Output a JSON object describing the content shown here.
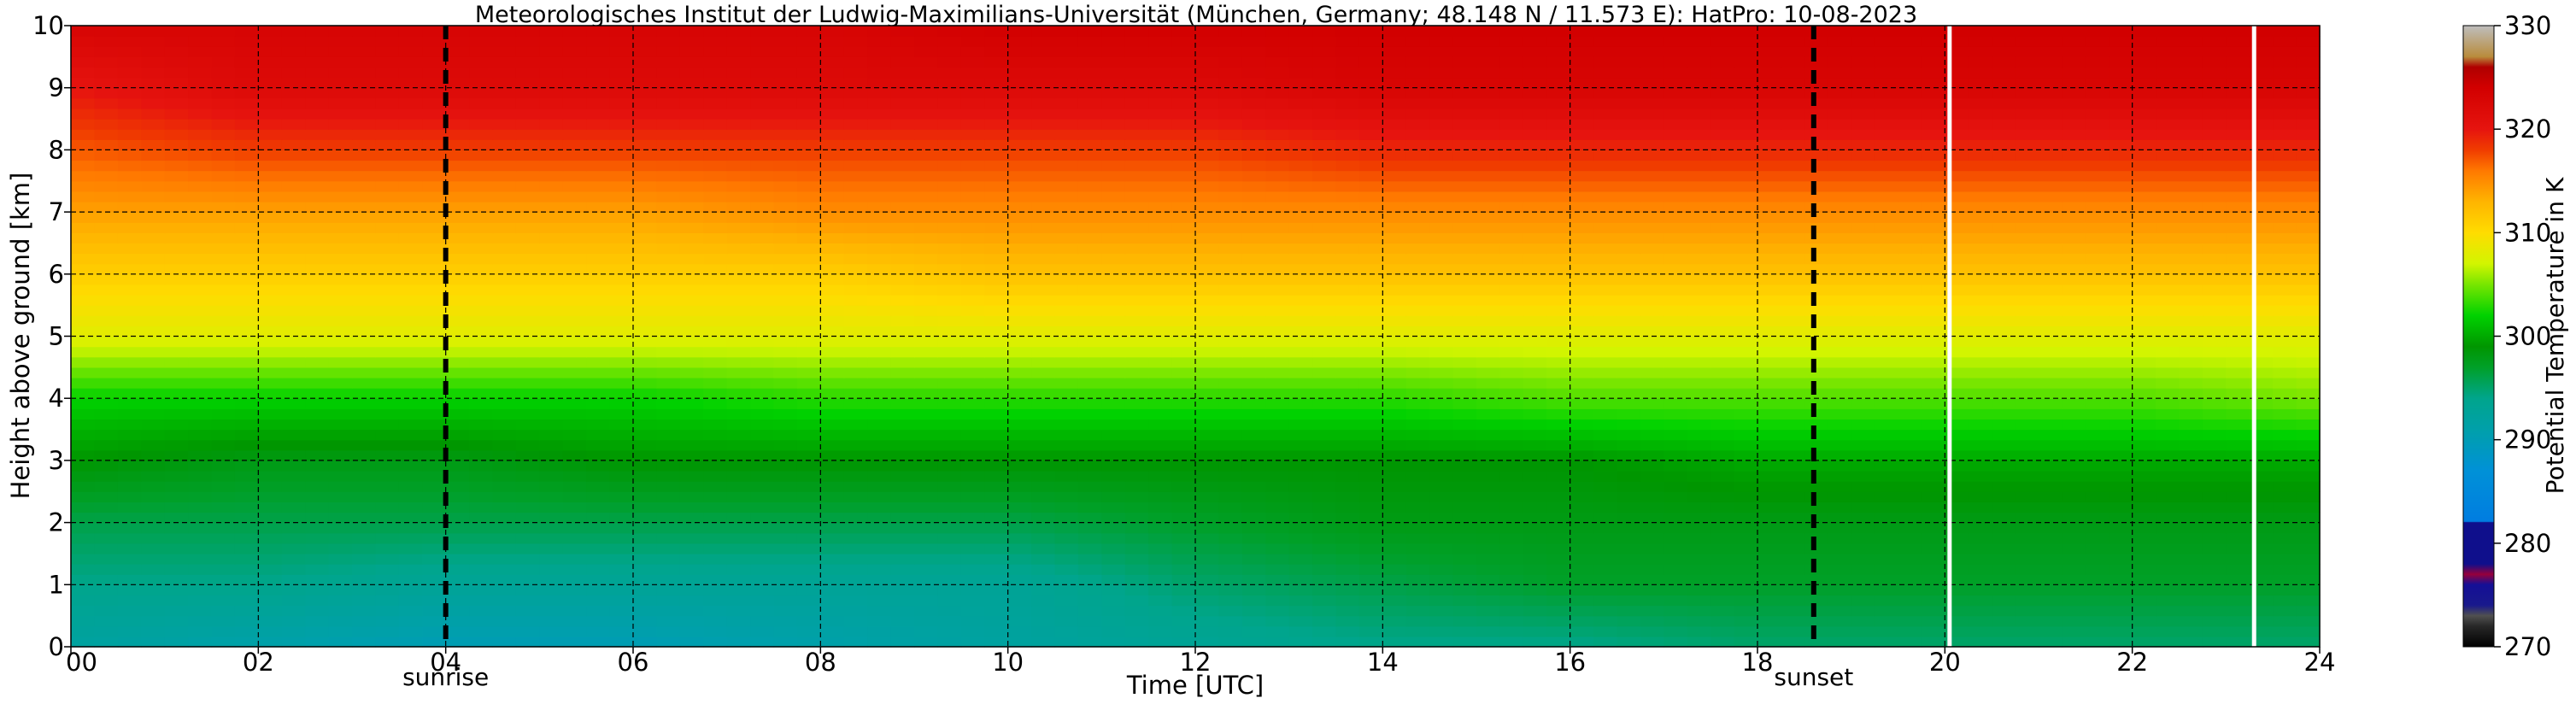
{
  "chart_data": {
    "type": "heatmap",
    "title": "Meteorologisches Institut der Ludwig-Maximilians-Universität (München, Germany; 48.148 N / 11.573 E):    HatPro: 10-08-2023",
    "xlabel": "Time [UTC]",
    "ylabel": "Height above ground [km]",
    "xlim": [
      0,
      24
    ],
    "ylim": [
      0,
      10
    ],
    "x_ticks": [
      0,
      2,
      4,
      6,
      8,
      10,
      12,
      14,
      16,
      18,
      20,
      22,
      24
    ],
    "x_tick_labels": [
      "00",
      "02",
      "04",
      "06",
      "08",
      "10",
      "12",
      "14",
      "16",
      "18",
      "20",
      "22",
      "24"
    ],
    "y_ticks": [
      0,
      1,
      2,
      3,
      4,
      5,
      6,
      7,
      8,
      9,
      10
    ],
    "y_tick_labels": [
      "0",
      "1",
      "2",
      "3",
      "4",
      "5",
      "6",
      "7",
      "8",
      "9",
      "10"
    ],
    "grid": true,
    "colorbar": {
      "label": "Potential Temperature in K",
      "range": [
        270,
        330
      ],
      "ticks": [
        270,
        280,
        290,
        300,
        310,
        320,
        330
      ],
      "tick_labels": [
        "270",
        "280",
        "290",
        "300",
        "310",
        "320",
        "330"
      ]
    },
    "annotations": [
      {
        "label": "sunrise",
        "x": 4.0,
        "style": "dashed-black"
      },
      {
        "label": "sunset",
        "x": 18.6,
        "style": "dashed-black"
      }
    ],
    "data_gaps": [
      20.05,
      23.3
    ],
    "times": [
      0,
      2,
      4,
      6,
      8,
      10,
      12,
      14,
      16,
      18,
      20,
      22,
      24
    ],
    "heights": [
      0,
      1,
      2,
      3,
      4,
      5,
      6,
      7,
      8,
      9,
      10
    ],
    "potential_temperature": [
      [
        292,
        291,
        290,
        290,
        291,
        292,
        293,
        294,
        294,
        295,
        295,
        295,
        295
      ],
      [
        294,
        294,
        293,
        293,
        293,
        293,
        295,
        296,
        297,
        297,
        297,
        297,
        297
      ],
      [
        296,
        296,
        296,
        296,
        296,
        296,
        297,
        298,
        298,
        298,
        298,
        298,
        298
      ],
      [
        299,
        298,
        298,
        299,
        299,
        299,
        299,
        299,
        299,
        300,
        300,
        300,
        300
      ],
      [
        302,
        302,
        302,
        302,
        303,
        303,
        303,
        303,
        304,
        304,
        304,
        304,
        305
      ],
      [
        308,
        308,
        308,
        308,
        308,
        308,
        308,
        308,
        308,
        308,
        308,
        308,
        308
      ],
      [
        311,
        311,
        311,
        311,
        311,
        312,
        312,
        312,
        312,
        312,
        312,
        312,
        312
      ],
      [
        314,
        314,
        314,
        314,
        315,
        315,
        315,
        315,
        315,
        315,
        315,
        315,
        315
      ],
      [
        317,
        318,
        318,
        318,
        318,
        318,
        318,
        319,
        319,
        319,
        319,
        319,
        319
      ],
      [
        320,
        322,
        322,
        322,
        322,
        322,
        322,
        323,
        323,
        323,
        323,
        323,
        323
      ],
      [
        323,
        323,
        323,
        323,
        323,
        324,
        324,
        324,
        324,
        324,
        324,
        324,
        324
      ]
    ]
  }
}
